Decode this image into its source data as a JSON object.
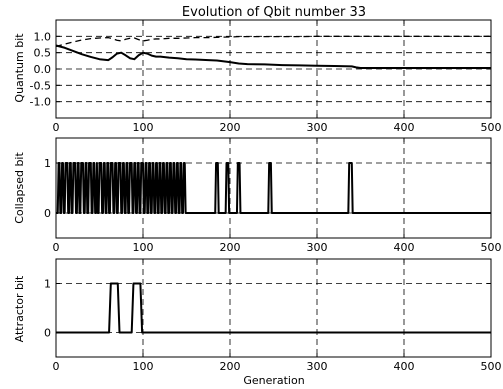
{
  "chart_data": [
    {
      "type": "line",
      "title": "Evolution of Qbit number 33",
      "xlabel": "",
      "ylabel": "Quantum bit",
      "xlim": [
        0,
        500
      ],
      "ylim": [
        -1.5,
        1.5
      ],
      "grid": true,
      "xticks": [
        0,
        100,
        200,
        300,
        400,
        500
      ],
      "xtick_labels": [
        "0",
        "100",
        "200",
        "300",
        "400",
        "500"
      ],
      "yticks": [
        1.0,
        0.5,
        0.0,
        -0.5,
        -1.0
      ],
      "ytick_labels": [
        "1.0",
        "0.5",
        "0.0",
        "-0.5",
        "-1.0"
      ],
      "series": [
        {
          "style": "solid",
          "x": [
            0,
            10,
            20,
            30,
            40,
            50,
            60,
            65,
            70,
            75,
            80,
            85,
            90,
            95,
            100,
            105,
            110,
            115,
            120,
            130,
            140,
            150,
            160,
            175,
            185,
            200,
            210,
            220,
            240,
            260,
            280,
            300,
            320,
            340,
            345,
            350,
            400,
            450,
            500
          ],
          "y": [
            0.72,
            0.65,
            0.55,
            0.45,
            0.37,
            0.3,
            0.27,
            0.36,
            0.47,
            0.5,
            0.42,
            0.33,
            0.3,
            0.42,
            0.5,
            0.47,
            0.41,
            0.38,
            0.38,
            0.35,
            0.33,
            0.3,
            0.29,
            0.27,
            0.26,
            0.21,
            0.17,
            0.15,
            0.14,
            0.12,
            0.11,
            0.1,
            0.09,
            0.08,
            0.05,
            0.03,
            0.03,
            0.03,
            0.03
          ]
        },
        {
          "style": "dashed",
          "x": [
            0,
            10,
            20,
            30,
            40,
            50,
            60,
            65,
            70,
            75,
            80,
            85,
            90,
            95,
            100,
            105,
            110,
            115,
            120,
            130,
            140,
            150,
            160,
            175,
            185,
            200,
            210,
            220,
            240,
            260,
            280,
            300,
            320,
            340,
            345,
            350,
            400,
            450,
            500
          ],
          "y": [
            0.69,
            0.76,
            0.83,
            0.89,
            0.93,
            0.95,
            0.96,
            0.93,
            0.88,
            0.86,
            0.91,
            0.94,
            0.95,
            0.9,
            0.86,
            0.88,
            0.91,
            0.92,
            0.92,
            0.94,
            0.94,
            0.95,
            0.96,
            0.96,
            0.97,
            0.98,
            0.99,
            0.99,
            0.99,
            0.99,
            0.99,
            1.0,
            1.0,
            1.0,
            1.0,
            1.0,
            1.0,
            1.0,
            1.0
          ]
        }
      ]
    },
    {
      "type": "line",
      "title": "",
      "xlabel": "",
      "ylabel": "Collapsed bit",
      "xlim": [
        0,
        500
      ],
      "ylim": [
        -0.5,
        1.5
      ],
      "grid": true,
      "xticks": [
        0,
        100,
        200,
        300,
        400,
        500
      ],
      "xtick_labels": [
        "0",
        "100",
        "200",
        "300",
        "400",
        "500"
      ],
      "yticks": [
        1,
        0
      ],
      "ytick_labels": [
        "1",
        "0"
      ],
      "series": [
        {
          "style": "solid",
          "x": [
            0,
            2,
            3,
            4,
            5,
            6,
            7,
            8,
            9,
            10,
            11,
            12,
            13,
            14,
            15,
            16,
            17,
            18,
            19,
            20,
            21,
            22,
            23,
            24,
            25,
            26,
            27,
            28,
            29,
            30,
            31,
            32,
            33,
            34,
            35,
            36,
            37,
            38,
            39,
            40,
            41,
            42,
            43,
            44,
            45,
            46,
            47,
            48,
            49,
            50,
            51,
            52,
            53,
            54,
            55,
            56,
            57,
            58,
            59,
            60,
            61,
            62,
            63,
            64,
            65,
            66,
            67,
            68,
            69,
            70,
            71,
            72,
            73,
            74,
            75,
            76,
            77,
            78,
            79,
            80,
            81,
            82,
            83,
            84,
            85,
            86,
            87,
            88,
            89,
            90,
            91,
            92,
            93,
            94,
            95,
            96,
            97,
            98,
            99,
            100,
            101,
            102,
            103,
            104,
            105,
            106,
            107,
            108,
            109,
            110,
            111,
            112,
            113,
            114,
            115,
            116,
            117,
            118,
            119,
            120,
            121,
            122,
            123,
            124,
            125,
            126,
            127,
            128,
            129,
            130,
            131,
            132,
            133,
            134,
            135,
            136,
            137,
            138,
            139,
            140,
            141,
            142,
            143,
            144,
            145,
            146,
            147,
            148,
            149,
            150,
            183,
            184,
            186,
            187,
            195,
            196,
            198,
            199,
            208,
            209,
            211,
            212,
            244,
            245,
            247,
            248,
            336,
            337,
            340,
            341,
            500
          ],
          "y": [
            0,
            0,
            1,
            1,
            0,
            0,
            1,
            1,
            0,
            0,
            1,
            1,
            1,
            0,
            0,
            1,
            1,
            0,
            0,
            1,
            1,
            1,
            0,
            0,
            1,
            1,
            0,
            0,
            1,
            1,
            1,
            0,
            0,
            1,
            1,
            0,
            0,
            1,
            1,
            1,
            0,
            0,
            1,
            1,
            0,
            0,
            1,
            0,
            0,
            1,
            1,
            1,
            0,
            0,
            1,
            1,
            0,
            0,
            1,
            1,
            0,
            0,
            1,
            1,
            1,
            0,
            0,
            1,
            1,
            0,
            0,
            1,
            1,
            1,
            0,
            0,
            1,
            1,
            0,
            0,
            1,
            1,
            0,
            0,
            1,
            1,
            1,
            0,
            0,
            1,
            1,
            0,
            0,
            1,
            1,
            0,
            0,
            1,
            1,
            1,
            0,
            0,
            1,
            1,
            0,
            0,
            1,
            1,
            0,
            0,
            1,
            1,
            0,
            0,
            1,
            1,
            0,
            0,
            1,
            1,
            0,
            0,
            1,
            1,
            0,
            0,
            1,
            1,
            0,
            0,
            1,
            1,
            0,
            0,
            1,
            1,
            0,
            0,
            1,
            1,
            0,
            0,
            1,
            1,
            0,
            0,
            1,
            1,
            0,
            0,
            0,
            1,
            1,
            0,
            0,
            1,
            1,
            0,
            0,
            1,
            1,
            0,
            0,
            1,
            1,
            0,
            0,
            1,
            1,
            0,
            0
          ]
        }
      ]
    },
    {
      "type": "line",
      "title": "",
      "xlabel": "Generation",
      "ylabel": "Attractor bit",
      "xlim": [
        0,
        500
      ],
      "ylim": [
        -0.5,
        1.5
      ],
      "grid": true,
      "xticks": [
        0,
        100,
        200,
        300,
        400,
        500
      ],
      "xtick_labels": [
        "0",
        "100",
        "200",
        "300",
        "400",
        "500"
      ],
      "yticks": [
        1,
        0
      ],
      "ytick_labels": [
        "1",
        "0"
      ],
      "series": [
        {
          "style": "solid",
          "x": [
            0,
            61,
            63,
            71,
            73,
            87,
            89,
            97,
            99,
            500
          ],
          "y": [
            0,
            0,
            1,
            1,
            0,
            0,
            1,
            1,
            0,
            0
          ]
        }
      ]
    }
  ]
}
